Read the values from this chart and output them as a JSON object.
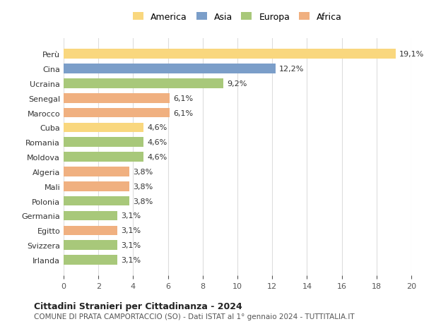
{
  "categories": [
    "Irlanda",
    "Svizzera",
    "Egitto",
    "Germania",
    "Polonia",
    "Mali",
    "Algeria",
    "Moldova",
    "Romania",
    "Cuba",
    "Marocco",
    "Senegal",
    "Ucraina",
    "Cina",
    "Perù"
  ],
  "values": [
    3.1,
    3.1,
    3.1,
    3.1,
    3.8,
    3.8,
    3.8,
    4.6,
    4.6,
    4.6,
    6.1,
    6.1,
    9.2,
    12.2,
    19.1
  ],
  "labels": [
    "3,1%",
    "3,1%",
    "3,1%",
    "3,1%",
    "3,8%",
    "3,8%",
    "3,8%",
    "4,6%",
    "4,6%",
    "4,6%",
    "6,1%",
    "6,1%",
    "9,2%",
    "12,2%",
    "19,1%"
  ],
  "continents": [
    "Europa",
    "Europa",
    "Africa",
    "Europa",
    "Europa",
    "Africa",
    "Africa",
    "Europa",
    "Europa",
    "America",
    "Africa",
    "Africa",
    "Europa",
    "Asia",
    "America"
  ],
  "colors": {
    "America": "#F9D77E",
    "Asia": "#7B9EC9",
    "Europa": "#A8C87A",
    "Africa": "#F0B080"
  },
  "legend_order": [
    "America",
    "Asia",
    "Europa",
    "Africa"
  ],
  "title": "Cittadini Stranieri per Cittadinanza - 2024",
  "subtitle": "COMUNE DI PRATA CAMPORTACCIO (SO) - Dati ISTAT al 1° gennaio 2024 - TUTTITALIA.IT",
  "xlim": [
    0,
    20
  ],
  "xticks": [
    0,
    2,
    4,
    6,
    8,
    10,
    12,
    14,
    16,
    18,
    20
  ],
  "bg_color": "#ffffff",
  "grid_color": "#dddddd",
  "bar_height": 0.65
}
